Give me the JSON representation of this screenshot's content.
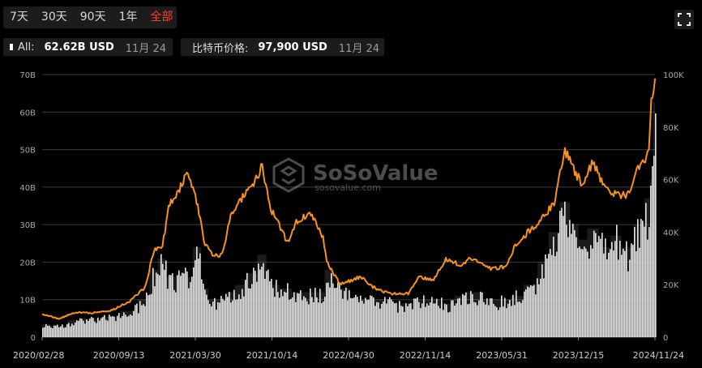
{
  "tabs": [
    "7天",
    "30天",
    "90天",
    "1年",
    "全部"
  ],
  "active_tab": "全部",
  "legend": {
    "volume": {
      "label": "All:",
      "value": "62.62B USD",
      "date": "11月 24",
      "color": "#ffffff"
    },
    "price": {
      "label": "比特币价格:",
      "value": "97,900 USD",
      "date": "11月 24",
      "color": "#f7931a"
    }
  },
  "watermark": {
    "brand": "SoSoValue",
    "url": "sosovalue.com"
  },
  "chart_data": {
    "type": "bar",
    "grid": true,
    "y_left": {
      "ticks": [
        "0",
        "10B",
        "20B",
        "30B",
        "40B",
        "50B",
        "60B",
        "70B"
      ],
      "range": [
        0,
        70
      ]
    },
    "y_right": {
      "ticks": [
        "0",
        "20K",
        "40K",
        "60K",
        "80K",
        "100K"
      ],
      "range": [
        0,
        100000
      ]
    },
    "x_labels": [
      "2020/02/28",
      "2020/09/13",
      "2021/03/30",
      "2021/10/14",
      "2022/04/30",
      "2022/11/14",
      "2023/05/31",
      "2023/12/15",
      "2024/11/24"
    ],
    "x": [
      "2020/02/28",
      "2020/04/15",
      "2020/06/01",
      "2020/07/15",
      "2020/09/13",
      "2020/11/01",
      "2020/12/15",
      "2021/01/08",
      "2021/02/01",
      "2021/02/20",
      "2021/03/30",
      "2021/04/15",
      "2021/05/12",
      "2021/06/01",
      "2021/06/22",
      "2021/07/20",
      "2021/08/15",
      "2021/09/07",
      "2021/10/14",
      "2021/11/10",
      "2021/12/05",
      "2022/01/22",
      "2022/02/15",
      "2022/03/28",
      "2022/04/30",
      "2022/05/12",
      "2022/06/18",
      "2022/08/15",
      "2022/09/20",
      "2022/11/09",
      "2022/11/14",
      "2022/12/30",
      "2023/01/25",
      "2023/03/10",
      "2023/04/14",
      "2023/05/31",
      "2023/06/20",
      "2023/08/17",
      "2023/10/01",
      "2023/10/24",
      "2023/12/15",
      "2024/01/11",
      "2024/02/15",
      "2024/03/14",
      "2024/04/13",
      "2024/05/01",
      "2024/06/01",
      "2024/07/05",
      "2024/08/05",
      "2024/09/06",
      "2024/10/15",
      "2024/11/05",
      "2024/11/13",
      "2024/11/24"
    ],
    "series": [
      {
        "name": "All",
        "color": "#e6e6e6",
        "values": [
          3.5,
          3,
          4.5,
          5,
          5.5,
          7,
          10,
          18,
          21,
          16,
          17,
          16,
          24,
          13,
          10,
          10,
          12,
          14,
          17,
          22,
          14,
          13,
          12,
          12,
          12,
          18,
          13,
          10,
          10,
          10,
          9,
          9,
          10,
          10,
          9,
          11,
          12,
          10,
          10,
          11,
          14,
          20,
          28,
          36,
          30,
          26,
          29,
          24,
          27,
          24,
          30,
          37,
          42,
          62.62
        ]
      },
      {
        "name": "比特币价格",
        "color": "#f7931a",
        "values": [
          8800,
          7000,
          9500,
          9200,
          10300,
          13700,
          19000,
          33000,
          34000,
          50000,
          58700,
          63000,
          50000,
          36000,
          32000,
          31000,
          47000,
          52000,
          57400,
          65000,
          49000,
          36000,
          44000,
          47000,
          38600,
          29000,
          20000,
          23000,
          19000,
          16500,
          16500,
          16600,
          23000,
          22000,
          30000,
          27000,
          30500,
          26000,
          27000,
          34500,
          42000,
          45000,
          52000,
          71000,
          63000,
          58000,
          67000,
          56000,
          54000,
          54000,
          67000,
          69000,
          88000,
          97900
        ]
      }
    ]
  }
}
